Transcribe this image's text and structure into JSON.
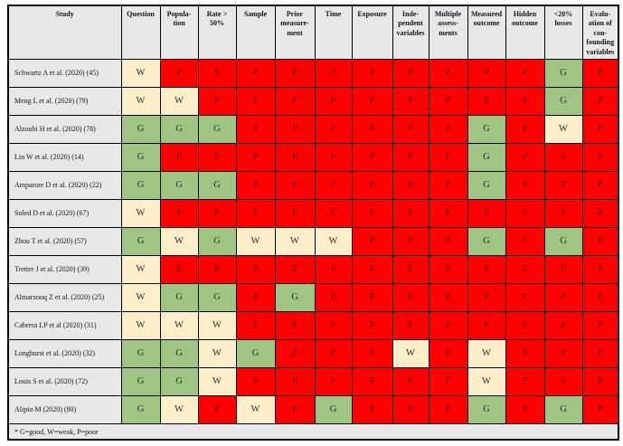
{
  "legend": "* G=good, W=weak, P=poor",
  "colors": {
    "good": "#a0c582",
    "weak": "#fceec9",
    "poor": "#fd0000",
    "gray": "#e8e8e8",
    "border": "#000000"
  },
  "columns": [
    {
      "key": "study",
      "label": "Study"
    },
    {
      "key": "question",
      "label": "Question"
    },
    {
      "key": "population",
      "label": "Popula-\ntion"
    },
    {
      "key": "rate",
      "label": "Rate >\n50%"
    },
    {
      "key": "sample",
      "label": "Sample"
    },
    {
      "key": "prior",
      "label": "Prior\nmeasure-\nment"
    },
    {
      "key": "time",
      "label": "Time"
    },
    {
      "key": "exposure",
      "label": "Exposure"
    },
    {
      "key": "independent",
      "label": "Inde-\npendent\nvariables"
    },
    {
      "key": "multiple",
      "label": "Multiple\nassess-\nments"
    },
    {
      "key": "measured",
      "label": "Measured\noutcome"
    },
    {
      "key": "hidden",
      "label": "Hidden\noutcome"
    },
    {
      "key": "losses",
      "label": "<20%\nlosses"
    },
    {
      "key": "confounding",
      "label": "Evalu-\nation of\ncon-\nfounding\nvariables"
    }
  ],
  "rows": [
    {
      "study": "Schwartz A et al. (2020) (45)",
      "ratings": [
        "W",
        "P",
        "P",
        "P",
        "P",
        "P",
        "P",
        "P",
        "P",
        "P",
        "P",
        "G",
        "P"
      ]
    },
    {
      "study": "Meng L et al. (2020) (79)",
      "ratings": [
        "W",
        "W",
        "P",
        "P",
        "P",
        "P",
        "P",
        "P",
        "P",
        "P",
        "P",
        "G",
        "P"
      ]
    },
    {
      "study": "Alzoubi H et al. (2020) (78)",
      "ratings": [
        "G",
        "G",
        "G",
        "P",
        "P",
        "P",
        "P",
        "P",
        "P",
        "G",
        "P",
        "W",
        "P"
      ]
    },
    {
      "study": "Lin W et al. (2020) (14)",
      "ratings": [
        "G",
        "P",
        "P",
        "P",
        "P",
        "P",
        "P",
        "P",
        "P",
        "G",
        "P",
        "P",
        "P"
      ]
    },
    {
      "study": "Amparore D et al. (2020) (22)",
      "ratings": [
        "G",
        "G",
        "G",
        "P",
        "P",
        "P",
        "P",
        "P",
        "P",
        "G",
        "P",
        "P",
        "P"
      ]
    },
    {
      "study": "Soled D et al. (2020) (67)",
      "ratings": [
        "W",
        "P",
        "P",
        "P",
        "P",
        "P",
        "P",
        "P",
        "P",
        "P",
        "P",
        "P",
        "P"
      ]
    },
    {
      "study": "Zhou T et al. (2020) (57)",
      "ratings": [
        "G",
        "W",
        "G",
        "W",
        "W",
        "W",
        "P",
        "P",
        "P",
        "G",
        "P",
        "G",
        "P"
      ]
    },
    {
      "study": "Tretter J et al. (2020) (39)",
      "ratings": [
        "W",
        "P",
        "P",
        "P",
        "P",
        "P",
        "P",
        "P",
        "P",
        "P",
        "P",
        "P",
        "P"
      ]
    },
    {
      "study": "Almarzooq Z et al. (2020) (25)",
      "ratings": [
        "W",
        "G",
        "G",
        "P",
        "G",
        "P",
        "P",
        "P",
        "P",
        "P",
        "P",
        "P",
        "P"
      ]
    },
    {
      "study": "Cabrera LP et al (2020) (31)",
      "ratings": [
        "W",
        "W",
        "W",
        "P",
        "P",
        "P",
        "P",
        "P",
        "P",
        "P",
        "P",
        "P",
        "P"
      ]
    },
    {
      "study": "Longhurst et al. (2020) (32)",
      "ratings": [
        "G",
        "G",
        "W",
        "G",
        "P",
        "P",
        "P",
        "W",
        "P",
        "W",
        "P",
        "P",
        "P"
      ]
    },
    {
      "study": "Louis S et al. (2020) (72)",
      "ratings": [
        "G",
        "G",
        "W",
        "P",
        "P",
        "P",
        "P",
        "P",
        "P",
        "W",
        "P",
        "P",
        "P"
      ]
    },
    {
      "study": "Alipio M (2020) (80)",
      "ratings": [
        "G",
        "W",
        "P",
        "W",
        "P",
        "G",
        "P",
        "P",
        "P",
        "G",
        "P",
        "G",
        "P"
      ]
    }
  ]
}
